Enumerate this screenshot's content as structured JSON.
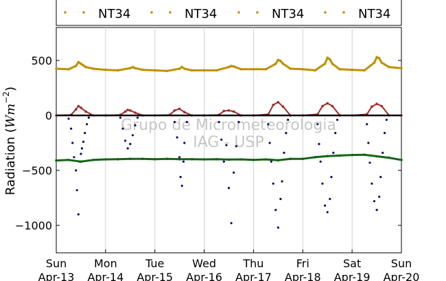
{
  "chart_data": {
    "type": "scatter",
    "ylabel": "Radiation ($Wm^{-2}$)",
    "ylabel_text": "Radiation (",
    "ylabel_unit_base": "Wm",
    "ylabel_unit_exp": "−2",
    "ylabel_close": ")",
    "ylim": [
      -1250,
      800
    ],
    "xlim": [
      0,
      7
    ],
    "yticks": [
      500,
      0,
      -500,
      -1000
    ],
    "ytick_labels": [
      "500",
      "0",
      "−500",
      "−1000"
    ],
    "x_ticks": [
      {
        "x": 0,
        "day": "Sun",
        "date": "Apr-13"
      },
      {
        "x": 1,
        "day": "Mon",
        "date": "Apr-14"
      },
      {
        "x": 2,
        "day": "Tue",
        "date": "Apr-15"
      },
      {
        "x": 3,
        "day": "Wed",
        "date": "Apr-16"
      },
      {
        "x": 4,
        "day": "Thu",
        "date": "Apr-17"
      },
      {
        "x": 5,
        "day": "Fri",
        "date": "Apr-18"
      },
      {
        "x": 6,
        "day": "Sat",
        "date": "Apr-19"
      },
      {
        "x": 7,
        "day": "Sun",
        "date": "Apr-20"
      }
    ],
    "grid": "vertical",
    "legend_placement": "top",
    "legend": [
      "NT34",
      "NT34",
      "NT34",
      "NT34"
    ],
    "watermark_lines": [
      "Grupo de Micrometeorologia",
      "IAG - USP"
    ],
    "series": [
      {
        "name": "NT34",
        "color": "#bf8f00",
        "kind": "longwave-down",
        "x": [
          0,
          0.25,
          0.4,
          0.45,
          0.5,
          0.55,
          0.6,
          0.75,
          1,
          1.25,
          1.5,
          1.55,
          1.6,
          1.75,
          2,
          2.25,
          2.5,
          2.55,
          2.6,
          2.75,
          3,
          3.25,
          3.5,
          3.55,
          3.6,
          3.75,
          4,
          4.25,
          4.45,
          4.5,
          4.55,
          4.6,
          4.75,
          5,
          5.25,
          5.45,
          5.5,
          5.55,
          5.6,
          5.75,
          6,
          6.25,
          6.45,
          6.5,
          6.55,
          6.6,
          6.75,
          7
        ],
        "y": [
          425,
          420,
          450,
          485,
          470,
          455,
          440,
          425,
          415,
          410,
          430,
          440,
          430,
          415,
          410,
          405,
          425,
          440,
          425,
          410,
          410,
          410,
          440,
          450,
          445,
          420,
          420,
          420,
          470,
          505,
          495,
          470,
          425,
          420,
          410,
          470,
          525,
          510,
          470,
          420,
          415,
          410,
          480,
          530,
          520,
          480,
          440,
          430
        ]
      },
      {
        "name": "NT34",
        "color": "#a02828",
        "kind": "net-shortwave-up",
        "x": [
          0,
          0.3,
          0.4,
          0.45,
          0.5,
          0.6,
          0.75,
          1,
          1.3,
          1.4,
          1.45,
          1.5,
          1.6,
          1.75,
          2,
          2.3,
          2.4,
          2.5,
          2.6,
          2.75,
          3,
          3.3,
          3.4,
          3.5,
          3.6,
          3.75,
          4,
          4.3,
          4.4,
          4.5,
          4.6,
          4.75,
          5,
          5.3,
          5.4,
          5.5,
          5.6,
          5.75,
          6,
          6.3,
          6.4,
          6.5,
          6.6,
          6.75,
          7
        ],
        "y": [
          0,
          5,
          55,
          85,
          70,
          35,
          0,
          0,
          5,
          35,
          50,
          45,
          25,
          0,
          0,
          5,
          45,
          60,
          30,
          0,
          0,
          5,
          40,
          45,
          35,
          0,
          0,
          10,
          95,
          120,
          80,
          0,
          0,
          10,
          85,
          110,
          85,
          0,
          0,
          10,
          80,
          105,
          85,
          0,
          0
        ]
      },
      {
        "name": "NT34",
        "color": "#000000",
        "kind": "zero-line",
        "x": [
          0,
          7
        ],
        "y": [
          0,
          0
        ]
      },
      {
        "name": "NT34",
        "color": "#06066e",
        "kind": "shortwave-down-negative",
        "x": [
          0.25,
          0.3,
          0.33,
          0.36,
          0.4,
          0.42,
          0.45,
          0.47,
          0.5,
          0.52,
          0.55,
          0.58,
          0.62,
          0.66,
          1.3,
          1.35,
          1.4,
          1.45,
          1.5,
          1.55,
          1.6,
          1.65,
          2.4,
          2.45,
          2.5,
          2.52,
          2.55,
          2.58,
          2.6,
          2.65,
          3.3,
          3.35,
          3.4,
          3.45,
          3.5,
          3.55,
          3.6,
          3.65,
          3.7,
          4.3,
          4.33,
          4.36,
          4.4,
          4.45,
          4.5,
          4.55,
          4.58,
          4.62,
          4.66,
          4.7,
          5.3,
          5.33,
          5.36,
          5.4,
          5.45,
          5.5,
          5.55,
          5.58,
          5.62,
          5.66,
          5.7,
          6.3,
          6.33,
          6.36,
          6.4,
          6.45,
          6.5,
          6.55,
          6.58,
          6.62,
          6.66,
          6.7
        ],
        "y": [
          -30,
          -120,
          -250,
          -380,
          -500,
          -680,
          -900,
          -420,
          -350,
          -300,
          -240,
          -160,
          -80,
          -20,
          -20,
          -120,
          -230,
          -300,
          -260,
          -180,
          -90,
          -20,
          -60,
          -200,
          -380,
          -560,
          -640,
          -420,
          -250,
          -60,
          -60,
          -220,
          -420,
          -270,
          -660,
          -980,
          -520,
          -280,
          -60,
          -80,
          -250,
          -420,
          -620,
          -860,
          -1020,
          -760,
          -600,
          -340,
          -160,
          -40,
          -80,
          -260,
          -420,
          -620,
          -820,
          -880,
          -760,
          -560,
          -340,
          -160,
          -40,
          -80,
          -250,
          -430,
          -620,
          -780,
          -860,
          -740,
          -560,
          -340,
          -160,
          -40
        ]
      },
      {
        "name": "NT34",
        "color": "#146414",
        "kind": "longwave-up-negative",
        "x": [
          0,
          0.25,
          0.5,
          0.75,
          1,
          1.25,
          1.5,
          1.75,
          2,
          2.25,
          2.5,
          2.75,
          3,
          3.25,
          3.5,
          3.75,
          4,
          4.25,
          4.5,
          4.75,
          5,
          5.25,
          5.5,
          5.75,
          6,
          6.25,
          6.5,
          6.75,
          7
        ],
        "y": [
          -410,
          -405,
          -420,
          -405,
          -400,
          -398,
          -395,
          -395,
          -398,
          -395,
          -398,
          -398,
          -400,
          -398,
          -402,
          -400,
          -405,
          -400,
          -408,
          -395,
          -395,
          -380,
          -370,
          -365,
          -360,
          -358,
          -372,
          -385,
          -405
        ]
      }
    ]
  }
}
